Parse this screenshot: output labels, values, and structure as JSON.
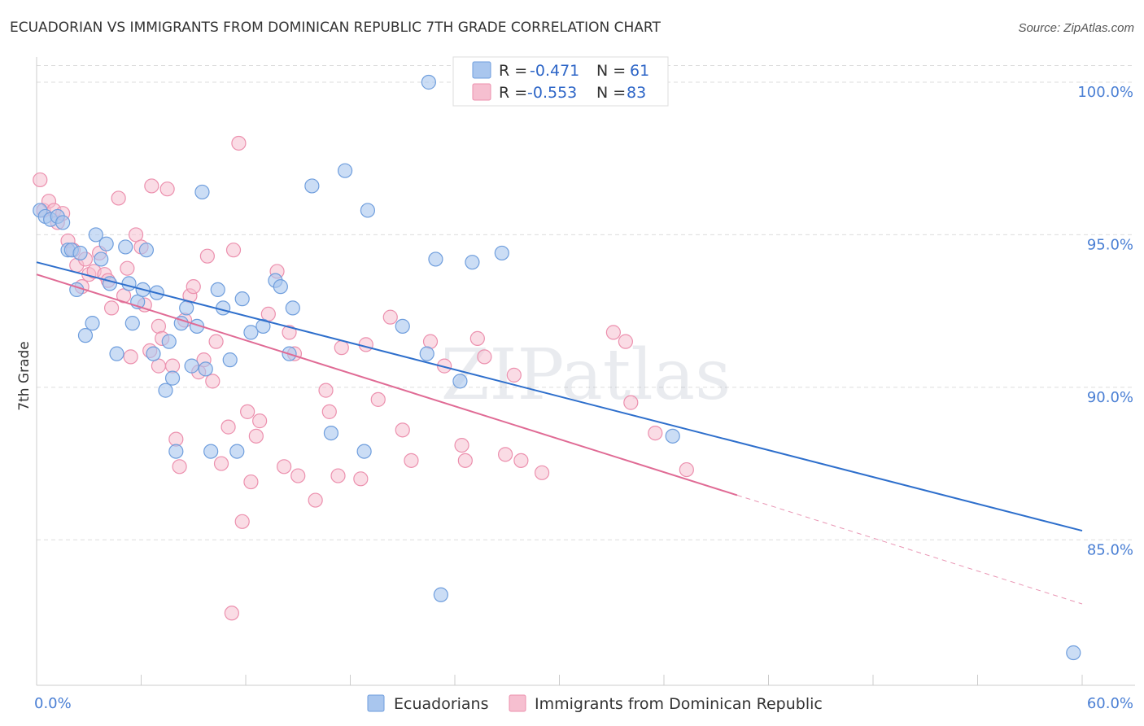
{
  "chart_data": {
    "type": "scatter",
    "title": "ECUADORIAN VS IMMIGRANTS FROM DOMINICAN REPUBLIC 7TH GRADE CORRELATION CHART",
    "source": "Source: ZipAtlas.com",
    "ylabel": "7th Grade",
    "xlim": [
      0,
      60
    ],
    "ylim": [
      80.5,
      100.6
    ],
    "x_ticks_labeled": [
      {
        "value": 0,
        "label": "0.0%"
      },
      {
        "value": 60,
        "label": "60.0%"
      }
    ],
    "y_ticks": [
      {
        "value": 100,
        "label": "100.0%"
      },
      {
        "value": 95,
        "label": "95.0%"
      },
      {
        "value": 90,
        "label": "90.0%"
      },
      {
        "value": 85,
        "label": "85.0%"
      }
    ],
    "grid": true,
    "watermark": "ZIPatlas",
    "legend_top": [
      {
        "r_label": "R =",
        "r_value": "-0.471",
        "n_label": "N =",
        "n_value": "61"
      },
      {
        "r_label": "R =",
        "r_value": "-0.553",
        "n_label": "N =",
        "n_value": "83"
      }
    ],
    "legend_bottom": [
      "Ecuadorians",
      "Immigrants from Dominican Republic"
    ],
    "colors": {
      "blue_fill": "#a9c6ee",
      "blue_stroke": "#6f9edd",
      "blue_line": "#2e6fcc",
      "pink_fill": "#f6bfd0",
      "pink_stroke": "#ec90ae",
      "pink_line": "#e06b95",
      "grid": "#dddddd",
      "tick_label": "#4a7fd4"
    },
    "series": [
      {
        "name": "Ecuadorians",
        "trend": {
          "x0": 0,
          "y0": 94.1,
          "x1": 60,
          "y1": 85.3,
          "solid_to": 60
        },
        "points": [
          [
            0.2,
            95.8
          ],
          [
            0.5,
            95.6
          ],
          [
            0.8,
            95.5
          ],
          [
            1.2,
            95.6
          ],
          [
            1.5,
            95.4
          ],
          [
            1.8,
            94.5
          ],
          [
            2.0,
            94.5
          ],
          [
            2.3,
            93.2
          ],
          [
            2.5,
            94.4
          ],
          [
            2.8,
            91.7
          ],
          [
            3.2,
            92.1
          ],
          [
            3.4,
            95.0
          ],
          [
            3.7,
            94.2
          ],
          [
            4.0,
            94.7
          ],
          [
            4.2,
            93.4
          ],
          [
            4.6,
            91.1
          ],
          [
            5.1,
            94.6
          ],
          [
            5.3,
            93.4
          ],
          [
            5.5,
            92.1
          ],
          [
            5.8,
            92.8
          ],
          [
            6.1,
            93.2
          ],
          [
            6.3,
            94.5
          ],
          [
            6.7,
            91.1
          ],
          [
            6.9,
            93.1
          ],
          [
            7.4,
            89.9
          ],
          [
            7.6,
            91.5
          ],
          [
            7.8,
            90.3
          ],
          [
            8.0,
            87.9
          ],
          [
            8.3,
            92.1
          ],
          [
            8.6,
            92.6
          ],
          [
            8.9,
            90.7
          ],
          [
            9.2,
            92.0
          ],
          [
            9.5,
            96.4
          ],
          [
            9.7,
            90.6
          ],
          [
            10.0,
            87.9
          ],
          [
            10.4,
            93.2
          ],
          [
            10.7,
            92.6
          ],
          [
            11.1,
            90.9
          ],
          [
            11.5,
            87.9
          ],
          [
            11.8,
            92.9
          ],
          [
            12.3,
            91.8
          ],
          [
            13.0,
            92.0
          ],
          [
            13.7,
            93.5
          ],
          [
            14.0,
            93.3
          ],
          [
            14.5,
            91.1
          ],
          [
            14.7,
            92.6
          ],
          [
            15.8,
            96.6
          ],
          [
            16.9,
            88.5
          ],
          [
            17.7,
            97.1
          ],
          [
            18.8,
            87.9
          ],
          [
            19.0,
            95.8
          ],
          [
            21.0,
            92.0
          ],
          [
            22.4,
            91.1
          ],
          [
            22.5,
            100.0
          ],
          [
            22.9,
            94.2
          ],
          [
            23.2,
            83.2
          ],
          [
            24.3,
            90.2
          ],
          [
            25.0,
            94.1
          ],
          [
            26.7,
            94.4
          ],
          [
            36.5,
            88.4
          ],
          [
            59.5,
            81.3
          ]
        ]
      },
      {
        "name": "Immigrants from Dominican Republic",
        "trend": {
          "x0": 0,
          "y0": 93.7,
          "x1": 60,
          "y1": 82.9,
          "solid_to": 40.2
        },
        "points": [
          [
            0.2,
            96.8
          ],
          [
            0.4,
            95.8
          ],
          [
            0.7,
            96.1
          ],
          [
            1.0,
            95.8
          ],
          [
            1.2,
            95.4
          ],
          [
            1.5,
            95.7
          ],
          [
            1.8,
            94.8
          ],
          [
            2.1,
            94.5
          ],
          [
            2.3,
            94.0
          ],
          [
            2.6,
            93.3
          ],
          [
            2.8,
            94.2
          ],
          [
            3.0,
            93.7
          ],
          [
            3.3,
            93.8
          ],
          [
            3.6,
            94.4
          ],
          [
            3.9,
            93.7
          ],
          [
            4.1,
            93.5
          ],
          [
            4.3,
            92.6
          ],
          [
            4.7,
            96.2
          ],
          [
            5.0,
            93.0
          ],
          [
            5.2,
            93.9
          ],
          [
            5.4,
            91.0
          ],
          [
            5.7,
            95.0
          ],
          [
            6.0,
            94.6
          ],
          [
            6.2,
            92.7
          ],
          [
            6.5,
            91.2
          ],
          [
            6.6,
            96.6
          ],
          [
            7.0,
            92.0
          ],
          [
            7.2,
            91.6
          ],
          [
            7.5,
            96.5
          ],
          [
            7.8,
            90.7
          ],
          [
            8.0,
            88.3
          ],
          [
            8.2,
            87.4
          ],
          [
            8.5,
            92.2
          ],
          [
            8.8,
            93.0
          ],
          [
            9.0,
            93.3
          ],
          [
            9.3,
            90.5
          ],
          [
            9.6,
            90.9
          ],
          [
            9.8,
            94.3
          ],
          [
            10.1,
            90.2
          ],
          [
            10.3,
            91.5
          ],
          [
            10.6,
            87.5
          ],
          [
            11.0,
            88.7
          ],
          [
            11.3,
            94.5
          ],
          [
            11.6,
            98.0
          ],
          [
            11.8,
            85.6
          ],
          [
            12.1,
            89.2
          ],
          [
            12.3,
            86.9
          ],
          [
            12.6,
            88.4
          ],
          [
            12.8,
            88.9
          ],
          [
            13.3,
            92.4
          ],
          [
            13.8,
            93.8
          ],
          [
            14.2,
            87.4
          ],
          [
            14.5,
            91.8
          ],
          [
            14.8,
            91.1
          ],
          [
            15.0,
            87.1
          ],
          [
            16.0,
            86.3
          ],
          [
            16.6,
            89.9
          ],
          [
            16.8,
            89.2
          ],
          [
            17.3,
            87.1
          ],
          [
            17.5,
            91.3
          ],
          [
            18.6,
            87.0
          ],
          [
            18.9,
            91.4
          ],
          [
            19.6,
            89.6
          ],
          [
            20.3,
            92.3
          ],
          [
            21.0,
            88.6
          ],
          [
            21.5,
            87.6
          ],
          [
            22.6,
            91.5
          ],
          [
            23.4,
            90.7
          ],
          [
            24.4,
            88.1
          ],
          [
            24.6,
            87.6
          ],
          [
            25.3,
            91.6
          ],
          [
            25.7,
            91.0
          ],
          [
            26.9,
            87.8
          ],
          [
            27.4,
            90.4
          ],
          [
            27.8,
            87.6
          ],
          [
            29.0,
            87.2
          ],
          [
            33.1,
            91.8
          ],
          [
            33.8,
            91.5
          ],
          [
            34.1,
            89.5
          ],
          [
            35.5,
            88.5
          ],
          [
            37.3,
            87.3
          ],
          [
            11.2,
            82.6
          ],
          [
            7.0,
            90.7
          ]
        ]
      }
    ]
  }
}
